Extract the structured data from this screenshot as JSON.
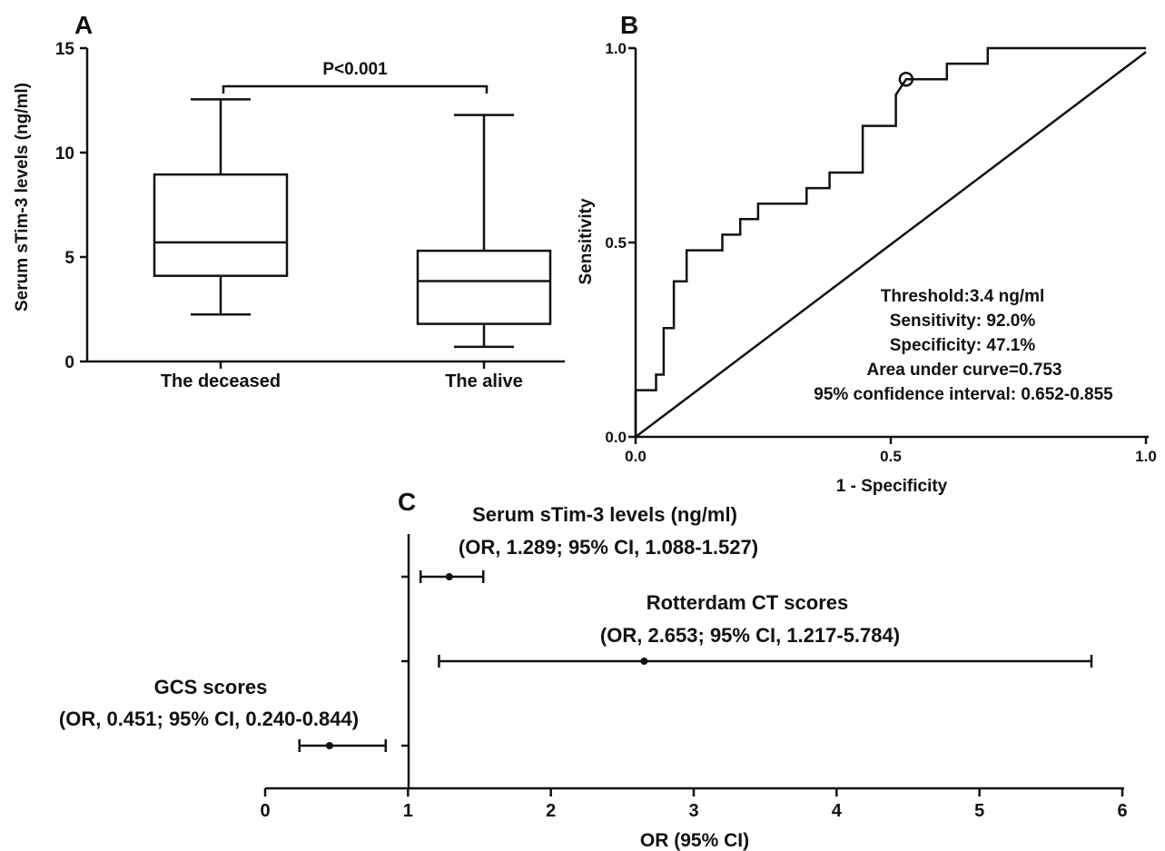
{
  "chart_data": [
    {
      "panel": "A",
      "type": "box",
      "ylabel": "Serum  sTim-3 levels (ng/ml)",
      "ylim": [
        0,
        15
      ],
      "yticks": [
        "0",
        "5",
        "10",
        "15"
      ],
      "categories": [
        "The deceased",
        "The alive"
      ],
      "boxes": [
        {
          "min": 2.25,
          "q1": 4.1,
          "median": 5.7,
          "q3": 8.95,
          "max": 12.55
        },
        {
          "min": 0.7,
          "q1": 1.8,
          "median": 3.85,
          "q3": 5.3,
          "max": 11.8
        }
      ],
      "annotation": "P<0.001"
    },
    {
      "panel": "B",
      "type": "line",
      "xlabel": "1 - Specificity",
      "ylabel": "Sensitivity",
      "xlim": [
        0,
        1
      ],
      "ylim": [
        0,
        1
      ],
      "xticks": [
        "0.0",
        "0.5",
        "1.0"
      ],
      "yticks": [
        "0.0",
        "0.5",
        "1.0"
      ],
      "series": [
        {
          "values": [
            [
              0,
              0
            ],
            [
              0,
              0.12
            ],
            [
              0.04,
              0.12
            ],
            [
              0.04,
              0.16
            ],
            [
              0.055,
              0.16
            ],
            [
              0.055,
              0.28
            ],
            [
              0.075,
              0.28
            ],
            [
              0.075,
              0.4
            ],
            [
              0.1,
              0.4
            ],
            [
              0.1,
              0.48
            ],
            [
              0.17,
              0.48
            ],
            [
              0.17,
              0.52
            ],
            [
              0.205,
              0.52
            ],
            [
              0.205,
              0.56
            ],
            [
              0.24,
              0.56
            ],
            [
              0.24,
              0.6
            ],
            [
              0.335,
              0.6
            ],
            [
              0.335,
              0.64
            ],
            [
              0.38,
              0.64
            ],
            [
              0.38,
              0.68
            ],
            [
              0.445,
              0.68
            ],
            [
              0.445,
              0.8
            ],
            [
              0.51,
              0.8
            ],
            [
              0.51,
              0.88
            ],
            [
              0.53,
              0.92
            ],
            [
              0.61,
              0.92
            ],
            [
              0.61,
              0.96
            ],
            [
              0.69,
              0.96
            ],
            [
              0.69,
              1.0
            ],
            [
              1.0,
              1.0
            ]
          ]
        },
        {
          "values": [
            [
              0,
              0
            ],
            [
              1.0,
              0.99
            ]
          ]
        }
      ],
      "optimal_point": [
        0.53,
        0.92
      ],
      "annotations": [
        "Threshold:3.4 ng/ml",
        "Sensitivity: 92.0%",
        "Specificity: 47.1%",
        "Area under curve=0.753",
        "95% confidence interval: 0.652-0.855"
      ]
    },
    {
      "panel": "C",
      "type": "forest",
      "xlabel": "OR (95% CI)",
      "xlim": [
        0,
        6
      ],
      "xticks": [
        "0",
        "1",
        "2",
        "3",
        "4",
        "5",
        "6"
      ],
      "reference": 1,
      "rows": [
        {
          "title": "Serum sTim-3 levels (ng/ml)",
          "label": "(OR, 1.289; 95% CI, 1.088-1.527)",
          "or": 1.289,
          "lo": 1.088,
          "hi": 1.527
        },
        {
          "title": "Rotterdam CT scores",
          "label": "(OR, 2.653; 95% CI, 1.217-5.784)",
          "or": 2.653,
          "lo": 1.217,
          "hi": 5.784
        },
        {
          "title": "GCS scores",
          "label": "(OR, 0.451; 95% CI, 0.240-0.844)",
          "or": 0.451,
          "lo": 0.24,
          "hi": 0.844
        }
      ]
    }
  ]
}
